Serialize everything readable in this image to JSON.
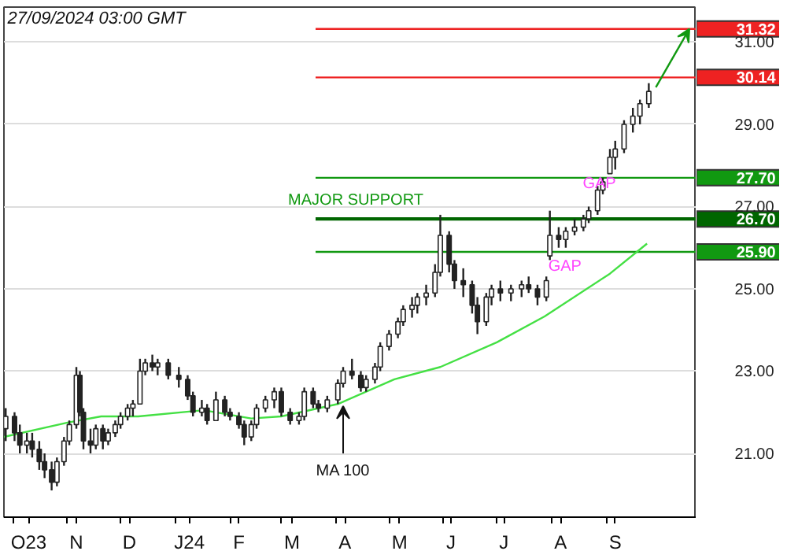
{
  "chart_data": {
    "type": "candlestick",
    "annotations": [
      "27/09/2024 03:00 GMT",
      "MAJOR SUPPORT",
      {
        "text": "GAP",
        "x": "2024-08-28",
        "y": 27.55
      },
      "GAP",
      {
        "text": "MA 100",
        "x": "2024-04-05",
        "y": 22.2
      }
    ],
    "x": [
      "2023-09-27",
      "2023-10-02",
      "2023-10-05",
      "2023-10-09",
      "2023-10-12",
      "2023-10-16",
      "2023-10-19",
      "2023-10-23",
      "2023-10-26",
      "2023-10-30",
      "2023-11-02",
      "2023-11-06",
      "2023-11-08",
      "2023-11-10",
      "2023-11-14",
      "2023-11-17",
      "2023-11-21",
      "2023-11-24",
      "2023-11-28",
      "2023-12-01",
      "2023-12-05",
      "2023-12-08",
      "2023-12-12",
      "2023-12-15",
      "2023-12-19",
      "2023-12-22",
      "2023-12-28",
      "2024-01-03",
      "2024-01-08",
      "2024-01-11",
      "2024-01-16",
      "2024-01-19",
      "2024-01-24",
      "2024-01-29",
      "2024-02-01",
      "2024-02-06",
      "2024-02-09",
      "2024-02-13",
      "2024-02-16",
      "2024-02-21",
      "2024-02-26",
      "2024-03-01",
      "2024-03-06",
      "2024-03-11",
      "2024-03-14",
      "2024-03-19",
      "2024-03-22",
      "2024-03-27",
      "2024-04-02",
      "2024-04-05",
      "2024-04-10",
      "2024-04-15",
      "2024-04-18",
      "2024-04-23",
      "2024-04-26",
      "2024-05-01",
      "2024-05-06",
      "2024-05-09",
      "2024-05-14",
      "2024-05-17",
      "2024-05-22",
      "2024-05-27",
      "2024-05-30",
      "2024-06-04",
      "2024-06-07",
      "2024-06-12",
      "2024-06-17",
      "2024-06-20",
      "2024-06-25",
      "2024-06-28",
      "2024-07-03",
      "2024-07-09",
      "2024-07-15",
      "2024-07-19",
      "2024-07-24",
      "2024-07-29",
      "2024-07-31",
      "2024-08-05",
      "2024-08-09",
      "2024-08-14",
      "2024-08-19",
      "2024-08-22",
      "2024-08-27",
      "2024-08-30",
      "2024-09-03",
      "2024-09-06",
      "2024-09-11",
      "2024-09-16",
      "2024-09-20",
      "2024-09-25"
    ],
    "ohlc": [
      [
        21.6,
        22.1,
        21.3,
        21.9
      ],
      [
        21.9,
        22.0,
        21.3,
        21.5
      ],
      [
        21.5,
        21.7,
        21.0,
        21.2
      ],
      [
        21.2,
        21.5,
        21.0,
        21.3
      ],
      [
        21.3,
        21.5,
        20.9,
        21.1
      ],
      [
        21.1,
        21.3,
        20.6,
        20.8
      ],
      [
        20.8,
        21.0,
        20.4,
        20.6
      ],
      [
        20.6,
        20.8,
        20.1,
        20.3
      ],
      [
        20.3,
        20.9,
        20.2,
        20.8
      ],
      [
        20.8,
        21.4,
        20.7,
        21.3
      ],
      [
        21.3,
        21.8,
        21.2,
        21.7
      ],
      [
        21.7,
        23.1,
        21.6,
        22.9
      ],
      [
        22.9,
        23.0,
        21.9,
        22.0
      ],
      [
        22.0,
        22.1,
        21.1,
        21.3
      ],
      [
        21.3,
        21.6,
        21.0,
        21.2
      ],
      [
        21.2,
        21.7,
        21.1,
        21.6
      ],
      [
        21.6,
        21.7,
        21.1,
        21.3
      ],
      [
        21.3,
        21.6,
        21.2,
        21.5
      ],
      [
        21.5,
        21.8,
        21.4,
        21.7
      ],
      [
        21.7,
        22.0,
        21.6,
        21.9
      ],
      [
        21.9,
        22.2,
        21.8,
        22.1
      ],
      [
        22.1,
        22.3,
        21.9,
        22.2
      ],
      [
        22.2,
        23.3,
        22.2,
        23.0
      ],
      [
        23.0,
        23.3,
        22.9,
        23.2
      ],
      [
        23.2,
        23.4,
        23.0,
        23.1
      ],
      [
        23.1,
        23.3,
        22.9,
        23.2
      ],
      [
        23.2,
        23.3,
        22.8,
        22.9
      ],
      [
        22.9,
        23.1,
        22.6,
        22.8
      ],
      [
        22.8,
        22.9,
        22.3,
        22.4
      ],
      [
        22.4,
        22.5,
        21.9,
        22.0
      ],
      [
        22.0,
        22.3,
        21.9,
        22.1
      ],
      [
        22.1,
        22.2,
        21.7,
        21.8
      ],
      [
        21.8,
        22.5,
        21.8,
        22.3
      ],
      [
        22.3,
        22.4,
        21.9,
        22.0
      ],
      [
        22.0,
        22.1,
        21.8,
        21.9
      ],
      [
        21.9,
        22.0,
        21.6,
        21.7
      ],
      [
        21.7,
        21.8,
        21.2,
        21.4
      ],
      [
        21.4,
        21.8,
        21.3,
        21.7
      ],
      [
        21.7,
        22.2,
        21.6,
        22.1
      ],
      [
        22.1,
        22.4,
        22.0,
        22.3
      ],
      [
        22.3,
        22.6,
        22.1,
        22.5
      ],
      [
        22.5,
        22.6,
        21.9,
        22.0
      ],
      [
        22.0,
        22.1,
        21.7,
        21.8
      ],
      [
        21.8,
        22.0,
        21.7,
        21.9
      ],
      [
        21.9,
        22.6,
        21.8,
        22.5
      ],
      [
        22.5,
        22.6,
        22.1,
        22.2
      ],
      [
        22.2,
        22.3,
        22.0,
        22.1
      ],
      [
        22.1,
        22.4,
        22.0,
        22.3
      ],
      [
        22.3,
        22.8,
        22.2,
        22.7
      ],
      [
        22.7,
        23.1,
        22.6,
        23.0
      ],
      [
        23.0,
        23.3,
        22.8,
        22.9
      ],
      [
        22.9,
        23.0,
        22.5,
        22.6
      ],
      [
        22.6,
        22.9,
        22.5,
        22.8
      ],
      [
        22.8,
        23.2,
        22.7,
        23.1
      ],
      [
        23.1,
        23.7,
        23.0,
        23.6
      ],
      [
        23.6,
        24.0,
        23.5,
        23.9
      ],
      [
        23.9,
        24.3,
        23.8,
        24.2
      ],
      [
        24.2,
        24.6,
        24.1,
        24.5
      ],
      [
        24.5,
        24.8,
        24.3,
        24.6
      ],
      [
        24.6,
        24.9,
        24.4,
        24.8
      ],
      [
        24.8,
        25.1,
        24.6,
        24.9
      ],
      [
        24.9,
        25.6,
        24.8,
        25.4
      ],
      [
        25.4,
        26.8,
        25.3,
        26.3
      ],
      [
        26.3,
        26.4,
        25.4,
        25.6
      ],
      [
        25.6,
        25.7,
        25.0,
        25.2
      ],
      [
        25.2,
        25.5,
        24.8,
        25.1
      ],
      [
        25.1,
        25.2,
        24.4,
        24.6
      ],
      [
        24.6,
        24.8,
        23.9,
        24.2
      ],
      [
        24.2,
        24.9,
        24.1,
        24.8
      ],
      [
        24.8,
        25.1,
        24.6,
        25.0
      ],
      [
        25.0,
        25.2,
        24.7,
        24.9
      ],
      [
        24.9,
        25.1,
        24.7,
        25.0
      ],
      [
        25.0,
        25.2,
        24.8,
        25.1
      ],
      [
        25.1,
        25.3,
        24.9,
        25.0
      ],
      [
        25.0,
        25.1,
        24.6,
        24.8
      ],
      [
        24.8,
        25.3,
        24.7,
        25.2
      ],
      [
        25.8,
        26.9,
        25.7,
        26.3
      ],
      [
        26.3,
        26.5,
        26.0,
        26.2
      ],
      [
        26.2,
        26.5,
        26.0,
        26.4
      ],
      [
        26.4,
        26.7,
        26.3,
        26.5
      ],
      [
        26.5,
        26.8,
        26.4,
        26.7
      ],
      [
        26.7,
        27.0,
        26.6,
        26.9
      ],
      [
        26.9,
        27.5,
        26.8,
        27.4
      ],
      [
        27.4,
        27.7,
        27.3,
        27.6
      ],
      [
        27.8,
        28.4,
        27.8,
        28.2
      ],
      [
        28.2,
        28.6,
        27.9,
        28.4
      ],
      [
        28.4,
        29.1,
        28.3,
        29.0
      ],
      [
        29.0,
        29.4,
        28.8,
        29.2
      ],
      [
        29.2,
        29.6,
        29.0,
        29.5
      ],
      [
        29.5,
        30.0,
        29.4,
        29.8
      ]
    ],
    "color": "#222222",
    "series": [
      {
        "type": "line",
        "color": "#44e044",
        "x": [
          "2023-09-26",
          "2023-11-01",
          "2023-11-20",
          "2023-12-11",
          "2024-01-17",
          "2024-02-13",
          "2024-03-01",
          "2024-04-02",
          "2024-05-04",
          "2024-05-30",
          "2024-07-01",
          "2024-07-28",
          "2024-09-03",
          "2024-09-24"
        ],
        "values": [
          21.4,
          21.75,
          21.9,
          21.9,
          22.05,
          21.85,
          21.9,
          22.2,
          22.8,
          23.1,
          23.7,
          24.33,
          25.37,
          26.1
        ]
      }
    ],
    "ref_lines": [
      {
        "axis": "y",
        "value": 31.32,
        "label": "31.32",
        "color": "#ee2222"
      },
      {
        "axis": "y",
        "value": 30.14,
        "label": "30.14",
        "color": "#ee2222"
      },
      {
        "axis": "y",
        "value": 27.7,
        "label": "27.70",
        "color": "#119911"
      },
      {
        "axis": "y",
        "value": 26.7,
        "label": "26.70",
        "color": "#006600"
      },
      {
        "axis": "y",
        "value": 25.9,
        "label": "25.90",
        "color": "#119911"
      }
    ],
    "xlim": [
      "2023-09-26",
      "2024-10-22"
    ],
    "xticks": [
      {
        "value": "2023-10-01",
        "label": null
      },
      {
        "value": "2023-10-10",
        "label": "O23"
      },
      {
        "value": "2023-11-01",
        "label": null
      },
      {
        "value": "2023-11-06",
        "label": "N"
      },
      {
        "value": "2023-12-01",
        "label": null
      },
      {
        "value": "2023-12-06",
        "label": "D"
      },
      {
        "value": "2024-01-01",
        "label": null
      },
      {
        "value": "2024-01-09",
        "label": "J24"
      },
      {
        "value": "2024-02-01",
        "label": null
      },
      {
        "value": "2024-02-06",
        "label": "F"
      },
      {
        "value": "2024-03-01",
        "label": null
      },
      {
        "value": "2024-03-07",
        "label": "M"
      },
      {
        "value": "2024-04-01",
        "label": null
      },
      {
        "value": "2024-04-06",
        "label": "A"
      },
      {
        "value": "2024-05-01",
        "label": null
      },
      {
        "value": "2024-05-07",
        "label": "M"
      },
      {
        "value": "2024-06-01",
        "label": null
      },
      {
        "value": "2024-06-05",
        "label": "J"
      },
      {
        "value": "2024-07-01",
        "label": null
      },
      {
        "value": "2024-07-05",
        "label": "J"
      },
      {
        "value": "2024-08-01",
        "label": null
      },
      {
        "value": "2024-08-06",
        "label": "A"
      },
      {
        "value": "2024-09-01",
        "label": null
      },
      {
        "value": "2024-09-06",
        "label": "S"
      }
    ],
    "ylim": [
      19.45,
      31.85
    ],
    "yticks": [
      {
        "value": 21,
        "label": "21.00"
      },
      {
        "value": 23,
        "label": "23.00"
      },
      {
        "value": 25,
        "label": "25.00"
      },
      {
        "value": 27,
        "label": "27.00"
      },
      {
        "value": 29,
        "label": "29.00"
      },
      {
        "value": 31,
        "label": "31.00"
      }
    ],
    "grid": "y"
  }
}
